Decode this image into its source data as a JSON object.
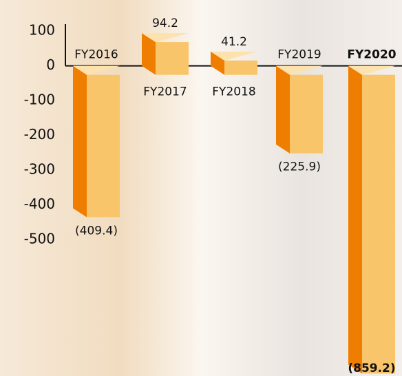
{
  "chart_data": {
    "type": "bar3d",
    "categories": [
      "FY2016",
      "FY2017",
      "FY2018",
      "FY2019",
      "FY2020"
    ],
    "values": [
      -409.4,
      94.2,
      41.2,
      -225.9,
      -859.2
    ],
    "value_labels": [
      "(409.4)",
      "94.2",
      "41.2",
      "(225.9)",
      "(859.2)"
    ],
    "ylim": [
      -880,
      130
    ],
    "yticks": [
      100,
      0,
      -100,
      -200,
      -300,
      -400,
      -500
    ],
    "colors": {
      "front": "#f9c56a",
      "side": "#ef7d00",
      "top": "#fde2ad"
    }
  }
}
